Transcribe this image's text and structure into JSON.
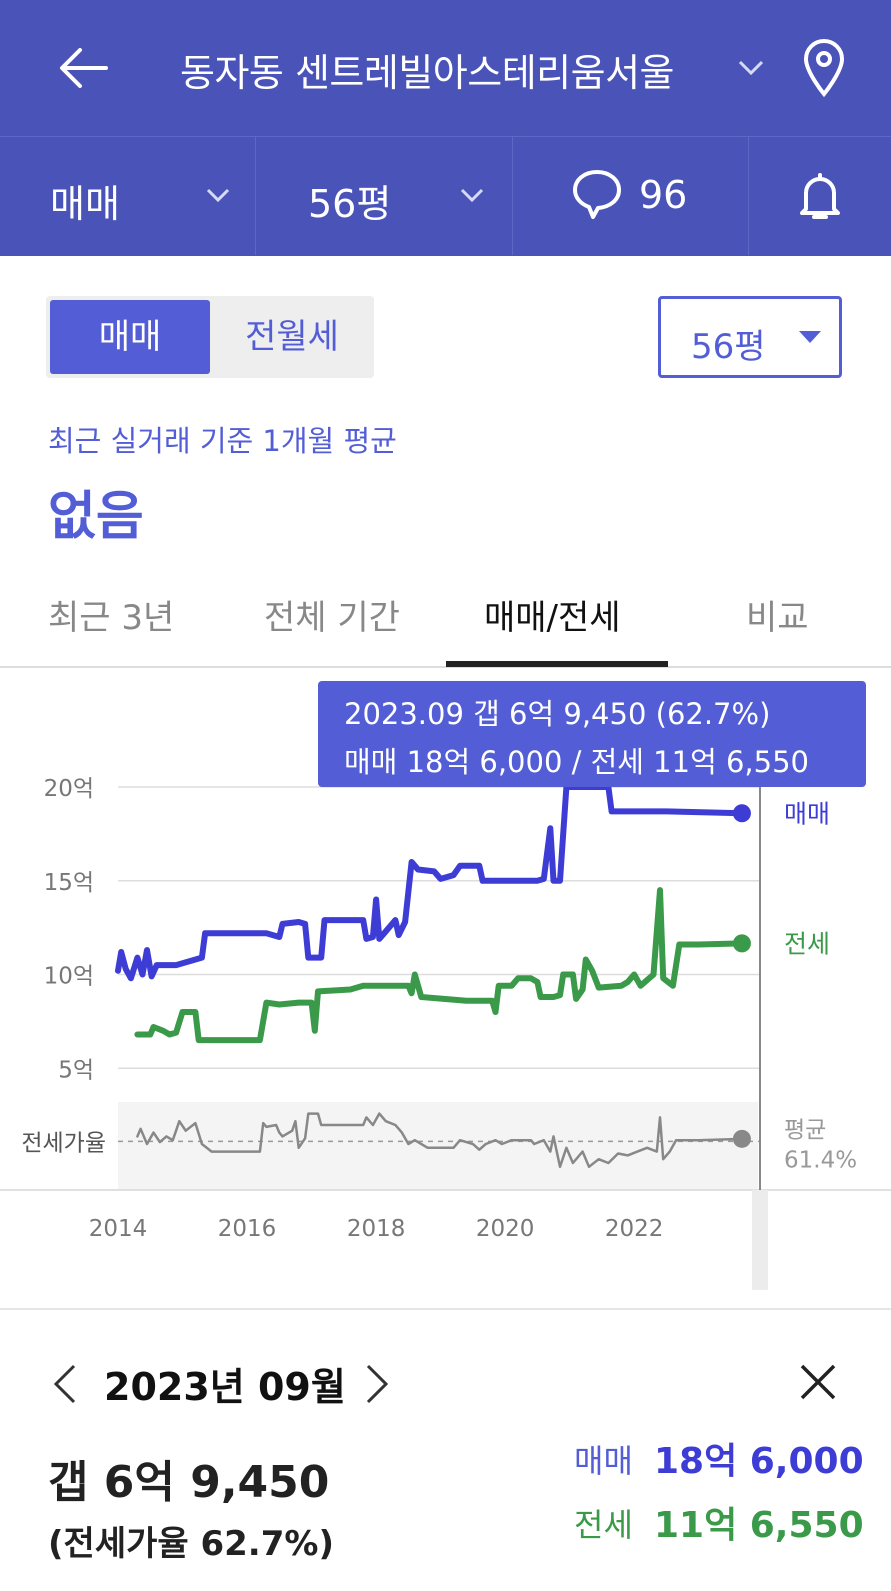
{
  "header": {
    "title": "동자동 센트레빌아스테리움서울"
  },
  "subbar": {
    "deal_type": "매매",
    "size": "56평",
    "comment_count": "96"
  },
  "segment": {
    "options": [
      "매매",
      "전월세"
    ],
    "selected": "매매"
  },
  "size_select": {
    "value": "56평"
  },
  "summary": {
    "caption": "최근 실거래 기준 1개월 평균",
    "value": "없음"
  },
  "tabs": [
    "최근 3년",
    "전체 기간",
    "매매/전세",
    "비교"
  ],
  "active_tab": "매매/전세",
  "tooltip": {
    "line1": "2023.09  갭 6억 9,450 (62.7%)",
    "line2": "매매 18억 6,000 / 전세 11억 6,550"
  },
  "chart_data": {
    "type": "line",
    "y_tick_labels": [
      "20억",
      "15억",
      "10억",
      "5억"
    ],
    "y_ticks": [
      20,
      15,
      10,
      5
    ],
    "ylim": [
      3.2,
      20.8
    ],
    "xlim": [
      2014,
      2023.95
    ],
    "x_tick_labels": [
      "2014",
      "2016",
      "2018",
      "2020",
      "2022"
    ],
    "ratio_row_label": "전세가율",
    "ratio_avg_label": "평균",
    "ratio_avg_value": "61.4%",
    "selected_x": 2023.67,
    "colors": {
      "sale": "#3d3dd6",
      "jeonse": "#3a9a4a",
      "ratio": "#888888",
      "accent": "#535ed6"
    },
    "series": [
      {
        "name": "매매",
        "values": [
          [
            2014.0,
            10.2
          ],
          [
            2014.05,
            11.2
          ],
          [
            2014.12,
            10.3
          ],
          [
            2014.2,
            9.8
          ],
          [
            2014.3,
            10.9
          ],
          [
            2014.38,
            10.0
          ],
          [
            2014.45,
            11.3
          ],
          [
            2014.52,
            9.9
          ],
          [
            2014.6,
            10.5
          ],
          [
            2014.9,
            10.5
          ],
          [
            2015.1,
            10.7
          ],
          [
            2015.3,
            10.9
          ],
          [
            2015.35,
            12.2
          ],
          [
            2015.8,
            12.2
          ],
          [
            2016.3,
            12.2
          ],
          [
            2016.5,
            12.0
          ],
          [
            2016.55,
            12.7
          ],
          [
            2016.8,
            12.8
          ],
          [
            2016.9,
            12.7
          ],
          [
            2016.95,
            10.9
          ],
          [
            2017.15,
            10.9
          ],
          [
            2017.2,
            12.9
          ],
          [
            2017.8,
            12.9
          ],
          [
            2017.85,
            11.9
          ],
          [
            2017.95,
            12.0
          ],
          [
            2018.0,
            14.0
          ],
          [
            2018.05,
            11.9
          ],
          [
            2018.15,
            12.3
          ],
          [
            2018.3,
            12.9
          ],
          [
            2018.35,
            12.1
          ],
          [
            2018.45,
            12.8
          ],
          [
            2018.55,
            16.0
          ],
          [
            2018.65,
            15.6
          ],
          [
            2018.9,
            15.5
          ],
          [
            2019.0,
            15.1
          ],
          [
            2019.2,
            15.3
          ],
          [
            2019.3,
            15.8
          ],
          [
            2019.6,
            15.8
          ],
          [
            2019.65,
            15.0
          ],
          [
            2020.5,
            15.0
          ],
          [
            2020.6,
            15.1
          ],
          [
            2020.7,
            17.8
          ],
          [
            2020.75,
            15.0
          ],
          [
            2020.85,
            15.0
          ],
          [
            2020.95,
            20.0
          ],
          [
            2021.6,
            20.0
          ],
          [
            2021.65,
            18.7
          ],
          [
            2022.5,
            18.7
          ],
          [
            2023.67,
            18.6
          ]
        ]
      },
      {
        "name": "전세",
        "values": [
          [
            2014.3,
            6.8
          ],
          [
            2014.5,
            6.8
          ],
          [
            2014.55,
            7.2
          ],
          [
            2014.7,
            7.0
          ],
          [
            2014.8,
            6.8
          ],
          [
            2014.9,
            6.9
          ],
          [
            2015.0,
            8.0
          ],
          [
            2015.2,
            8.0
          ],
          [
            2015.25,
            6.5
          ],
          [
            2015.8,
            6.5
          ],
          [
            2016.2,
            6.5
          ],
          [
            2016.3,
            8.5
          ],
          [
            2016.5,
            8.4
          ],
          [
            2016.8,
            8.5
          ],
          [
            2017.0,
            8.5
          ],
          [
            2017.05,
            7.0
          ],
          [
            2017.1,
            9.1
          ],
          [
            2017.6,
            9.2
          ],
          [
            2017.8,
            9.4
          ],
          [
            2018.5,
            9.4
          ],
          [
            2018.55,
            9.0
          ],
          [
            2018.6,
            10.0
          ],
          [
            2018.7,
            8.8
          ],
          [
            2019.4,
            8.6
          ],
          [
            2019.8,
            8.6
          ],
          [
            2019.85,
            8.0
          ],
          [
            2019.9,
            9.4
          ],
          [
            2020.1,
            9.4
          ],
          [
            2020.2,
            9.8
          ],
          [
            2020.4,
            9.8
          ],
          [
            2020.5,
            9.6
          ],
          [
            2020.55,
            8.8
          ],
          [
            2020.75,
            8.8
          ],
          [
            2020.85,
            8.9
          ],
          [
            2020.9,
            10.0
          ],
          [
            2021.05,
            10.0
          ],
          [
            2021.1,
            8.7
          ],
          [
            2021.2,
            9.2
          ],
          [
            2021.25,
            10.8
          ],
          [
            2021.35,
            10.2
          ],
          [
            2021.45,
            9.3
          ],
          [
            2021.8,
            9.4
          ],
          [
            2021.9,
            9.6
          ],
          [
            2022.0,
            10.0
          ],
          [
            2022.1,
            9.4
          ],
          [
            2022.3,
            10.0
          ],
          [
            2022.4,
            14.5
          ],
          [
            2022.45,
            9.8
          ],
          [
            2022.6,
            9.4
          ],
          [
            2022.7,
            11.6
          ],
          [
            2022.9,
            11.6
          ],
          [
            2023.0,
            11.6
          ],
          [
            2023.67,
            11.66
          ]
        ]
      },
      {
        "name": "전세가율",
        "values": [
          [
            2014.3,
            64
          ],
          [
            2014.35,
            68
          ],
          [
            2014.45,
            60
          ],
          [
            2014.55,
            66
          ],
          [
            2014.65,
            61
          ],
          [
            2014.75,
            64
          ],
          [
            2014.85,
            62
          ],
          [
            2014.95,
            72
          ],
          [
            2015.05,
            67
          ],
          [
            2015.2,
            71
          ],
          [
            2015.3,
            60
          ],
          [
            2015.45,
            56
          ],
          [
            2015.8,
            56
          ],
          [
            2016.2,
            56
          ],
          [
            2016.25,
            71
          ],
          [
            2016.3,
            69
          ],
          [
            2016.45,
            70
          ],
          [
            2016.5,
            66
          ],
          [
            2016.55,
            64
          ],
          [
            2016.7,
            67
          ],
          [
            2016.75,
            72
          ],
          [
            2016.8,
            58
          ],
          [
            2016.9,
            63
          ],
          [
            2016.95,
            76
          ],
          [
            2017.1,
            76
          ],
          [
            2017.15,
            70
          ],
          [
            2017.8,
            70
          ],
          [
            2017.85,
            74
          ],
          [
            2017.95,
            70
          ],
          [
            2018.05,
            76
          ],
          [
            2018.15,
            72
          ],
          [
            2018.3,
            70
          ],
          [
            2018.4,
            66
          ],
          [
            2018.5,
            60
          ],
          [
            2018.6,
            62
          ],
          [
            2018.8,
            58
          ],
          [
            2019.2,
            58
          ],
          [
            2019.3,
            62
          ],
          [
            2019.5,
            60
          ],
          [
            2019.6,
            57
          ],
          [
            2019.7,
            60
          ],
          [
            2019.85,
            62
          ],
          [
            2019.95,
            60
          ],
          [
            2020.1,
            62
          ],
          [
            2020.4,
            62
          ],
          [
            2020.45,
            60
          ],
          [
            2020.6,
            62
          ],
          [
            2020.7,
            56
          ],
          [
            2020.75,
            64
          ],
          [
            2020.85,
            48
          ],
          [
            2020.95,
            58
          ],
          [
            2021.05,
            50
          ],
          [
            2021.2,
            56
          ],
          [
            2021.3,
            48
          ],
          [
            2021.45,
            52
          ],
          [
            2021.6,
            50
          ],
          [
            2021.75,
            55
          ],
          [
            2021.9,
            54
          ],
          [
            2022.05,
            56
          ],
          [
            2022.2,
            58
          ],
          [
            2022.35,
            56
          ],
          [
            2022.4,
            74
          ],
          [
            2022.45,
            52
          ],
          [
            2022.55,
            56
          ],
          [
            2022.65,
            62
          ],
          [
            2022.8,
            62
          ],
          [
            2023.0,
            62
          ],
          [
            2023.67,
            62.7
          ]
        ]
      }
    ]
  },
  "detail": {
    "date": "2023년 09월",
    "gap": "갭 6억 9,450",
    "ratio": "(전세가율 62.7%)",
    "sale_label": "매매",
    "sale_value": "18억 6,000",
    "jeonse_label": "전세",
    "jeonse_value": "11억 6,550"
  }
}
